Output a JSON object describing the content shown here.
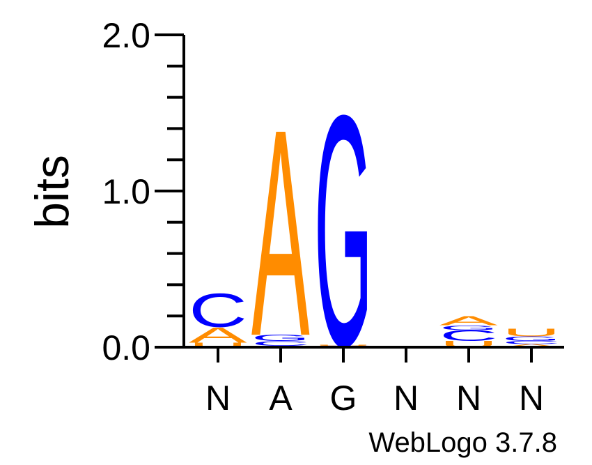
{
  "chart_data": {
    "type": "sequence_logo",
    "ylabel": "bits",
    "ylim": [
      0,
      2
    ],
    "y_tick_labels": [
      "0.0",
      "1.0",
      "2.0"
    ],
    "positions": [
      "N",
      "A",
      "G",
      "N",
      "N",
      "N"
    ],
    "columns": [
      {
        "stack": [
          {
            "letter": "U",
            "bits": 0.03
          },
          {
            "letter": "A",
            "bits": 0.1
          },
          {
            "letter": "C",
            "bits": 0.22
          }
        ]
      },
      {
        "stack": [
          {
            "letter": "U",
            "bits": 0.01
          },
          {
            "letter": "C",
            "bits": 0.03
          },
          {
            "letter": "G",
            "bits": 0.04
          },
          {
            "letter": "A",
            "bits": 1.36
          }
        ]
      },
      {
        "stack": [
          {
            "letter": "A",
            "bits": 0.005
          },
          {
            "letter": "C",
            "bits": 0.005
          },
          {
            "letter": "U",
            "bits": 0.005
          },
          {
            "letter": "G",
            "bits": 1.52
          }
        ]
      },
      {
        "stack": []
      },
      {
        "stack": [
          {
            "letter": "U",
            "bits": 0.04
          },
          {
            "letter": "C",
            "bits": 0.07
          },
          {
            "letter": "G",
            "bits": 0.03
          },
          {
            "letter": "A",
            "bits": 0.06
          }
        ]
      },
      {
        "stack": [
          {
            "letter": "A",
            "bits": 0.02
          },
          {
            "letter": "C",
            "bits": 0.02
          },
          {
            "letter": "G",
            "bits": 0.03
          },
          {
            "letter": "U",
            "bits": 0.05
          }
        ]
      }
    ],
    "colors": {
      "A": "#ff8c00",
      "U": "#ff8c00",
      "C": "#0000ff",
      "G": "#0000ff"
    }
  },
  "footer": {
    "text": "WebLogo 3.7.8"
  }
}
